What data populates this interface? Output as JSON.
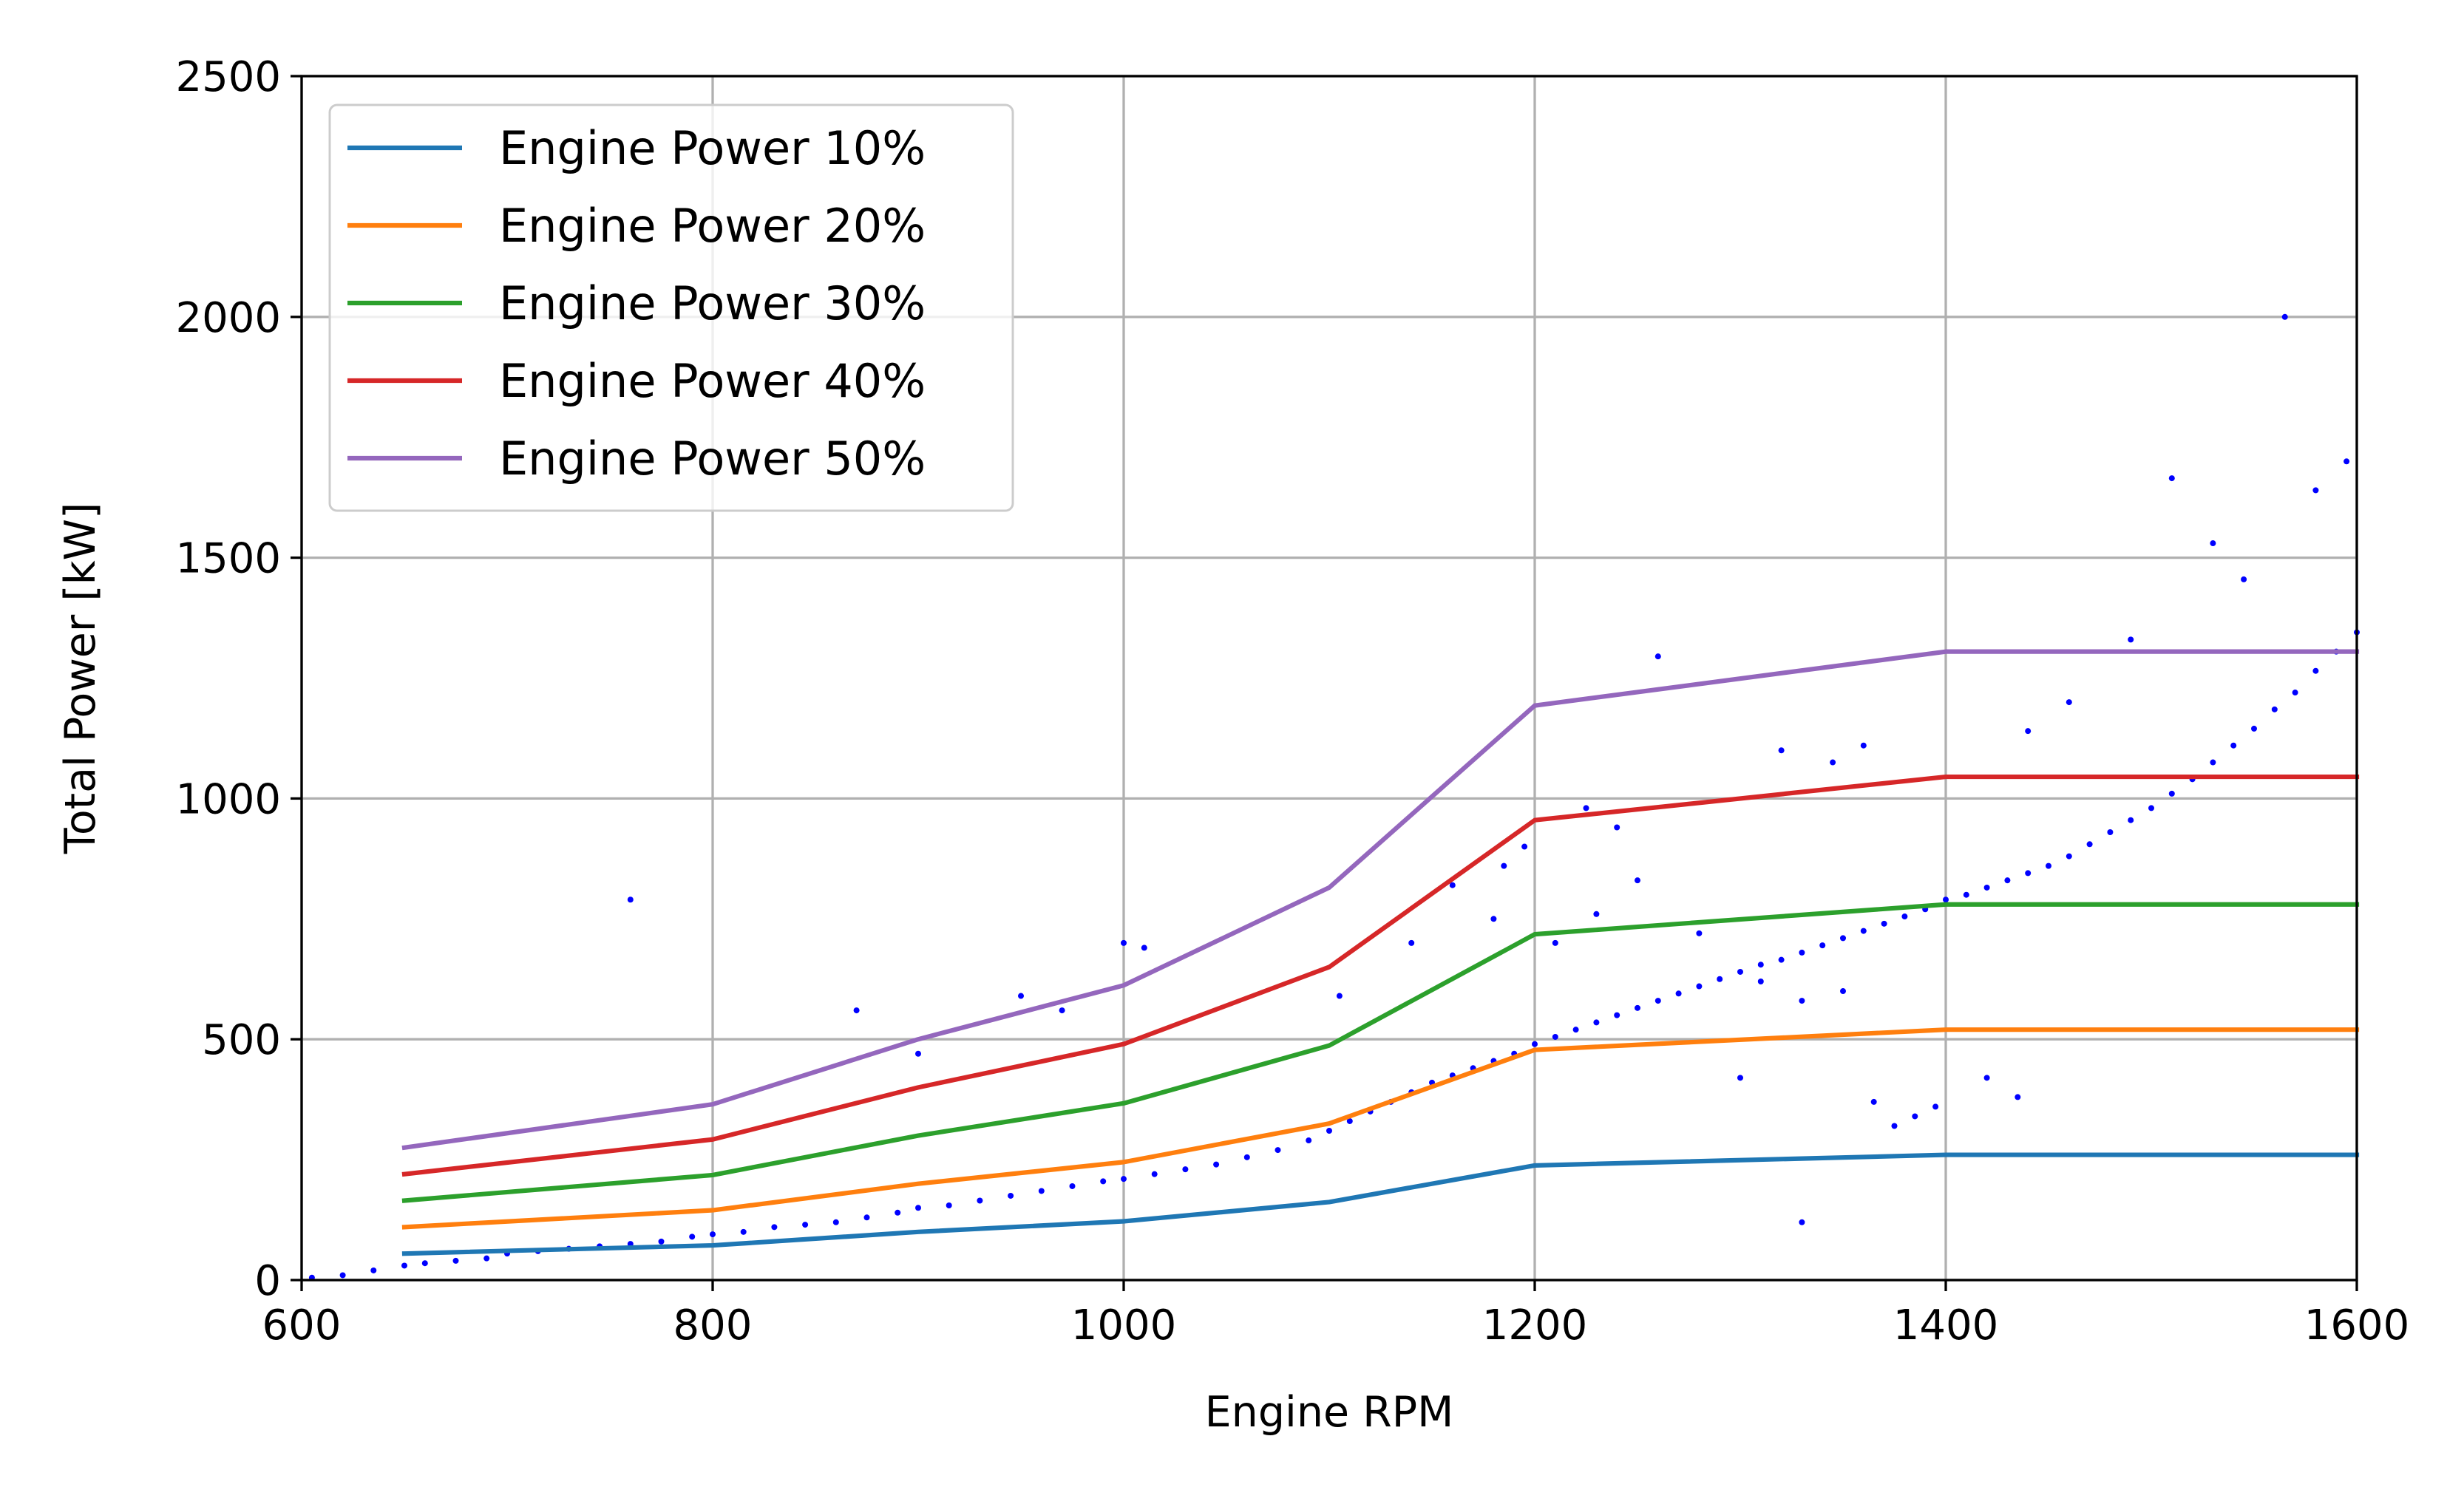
{
  "chart_data": {
    "type": "line",
    "xlabel": "Engine RPM",
    "ylabel": "Total Power [kW]",
    "xlim": [
      600,
      1600
    ],
    "ylim": [
      0,
      2500
    ],
    "x_ticks": [
      600,
      800,
      1000,
      1200,
      1400,
      1600
    ],
    "y_ticks": [
      0,
      500,
      1000,
      1500,
      2000,
      2500
    ],
    "grid": true,
    "legend_position": "upper-left",
    "x": [
      650,
      800,
      900,
      1000,
      1100,
      1200,
      1400,
      1600
    ],
    "series": [
      {
        "name": "Engine Power 10%",
        "color": "#1f77b4",
        "values": [
          55,
          72,
          100,
          122,
          162,
          238,
          260,
          260
        ]
      },
      {
        "name": "Engine Power 20%",
        "color": "#ff7f0e",
        "values": [
          110,
          145,
          200,
          245,
          325,
          478,
          520,
          520
        ]
      },
      {
        "name": "Engine Power 30%",
        "color": "#2ca02c",
        "values": [
          165,
          218,
          300,
          367,
          487,
          718,
          780,
          780
        ]
      },
      {
        "name": "Engine Power 40%",
        "color": "#d62728",
        "values": [
          220,
          292,
          400,
          490,
          650,
          955,
          1045,
          1045
        ]
      },
      {
        "name": "Engine Power 50%",
        "color": "#9467bd",
        "values": [
          275,
          365,
          500,
          612,
          815,
          1193,
          1305,
          1305
        ]
      }
    ],
    "scatter": {
      "color": "#0000ff",
      "description_points": "measured operating points",
      "x": [
        605,
        620,
        635,
        650,
        660,
        675,
        690,
        700,
        715,
        730,
        745,
        760,
        775,
        790,
        800,
        815,
        830,
        845,
        860,
        875,
        890,
        900,
        915,
        930,
        945,
        960,
        975,
        990,
        1000,
        1015,
        1030,
        1045,
        1060,
        1075,
        1090,
        1100,
        1110,
        1120,
        1130,
        1140,
        1150,
        1160,
        1170,
        1180,
        1190,
        1200,
        1210,
        1220,
        1230,
        1240,
        1250,
        1260,
        1270,
        1280,
        1290,
        1300,
        1310,
        1320,
        1330,
        1340,
        1350,
        1360,
        1370,
        1380,
        1390,
        1400,
        1410,
        1420,
        1430,
        1440,
        1450,
        1460,
        1470,
        1480,
        1490,
        1500,
        1510,
        1520,
        1530,
        1540,
        1550,
        1560,
        1570,
        1580,
        1590,
        1600,
        1210,
        1230,
        1250,
        1280,
        1310,
        1330,
        1365,
        1375,
        1385,
        1395,
        1420,
        1435,
        1260,
        1320,
        1345,
        1360,
        1440,
        1460,
        1490,
        1510,
        1530,
        1545,
        1565,
        1580,
        1595,
        1000,
        1010,
        970,
        950,
        870,
        760,
        900,
        1160,
        1180,
        1140,
        1105,
        1185,
        1195,
        1225,
        1240,
        1300,
        1330,
        1350
      ],
      "y": [
        5,
        10,
        20,
        30,
        35,
        40,
        45,
        55,
        60,
        65,
        70,
        75,
        80,
        90,
        95,
        100,
        110,
        115,
        120,
        130,
        140,
        150,
        155,
        165,
        175,
        185,
        195,
        205,
        210,
        220,
        230,
        240,
        255,
        270,
        290,
        310,
        330,
        350,
        370,
        390,
        410,
        425,
        440,
        455,
        470,
        490,
        505,
        520,
        535,
        550,
        565,
        580,
        595,
        610,
        625,
        640,
        655,
        665,
        680,
        695,
        710,
        725,
        740,
        755,
        770,
        790,
        800,
        815,
        830,
        845,
        860,
        880,
        905,
        930,
        955,
        980,
        1010,
        1040,
        1075,
        1110,
        1145,
        1185,
        1220,
        1265,
        1305,
        1345,
        700,
        760,
        830,
        720,
        620,
        580,
        370,
        320,
        340,
        360,
        420,
        380,
        1295,
        1100,
        1075,
        1110,
        1140,
        1200,
        1330,
        1665,
        1530,
        1455,
        2000,
        1640,
        1700,
        700,
        690,
        560,
        590,
        560,
        790,
        470,
        820,
        750,
        700,
        590,
        860,
        900,
        980,
        940,
        420,
        120,
        600
      ]
    }
  }
}
